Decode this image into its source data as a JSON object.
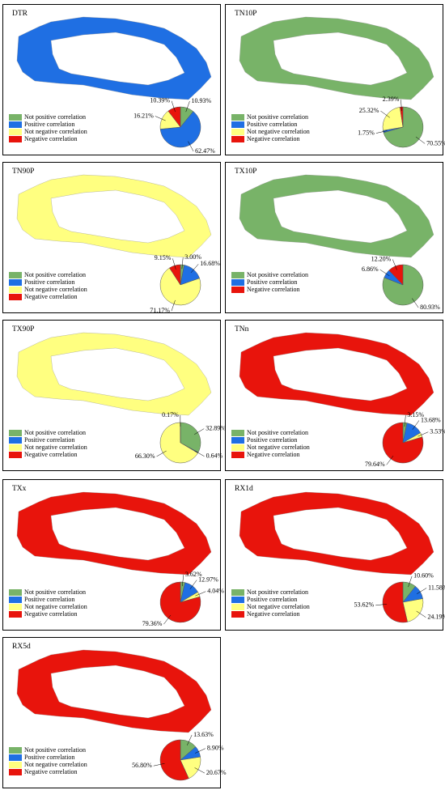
{
  "chart_data": [
    {
      "type": "pie",
      "title": "DTR",
      "categories": [
        "Not positive correlation",
        "Positive correlation",
        "Not negative correlation",
        "Negative correlation"
      ],
      "colors": [
        "#78b368",
        "#1f6fe3",
        "#ffff80",
        "#e8140c"
      ],
      "values": [
        10.93,
        62.47,
        16.21,
        10.39
      ],
      "value_labels": [
        "10.93%",
        "62.47%",
        "16.21%",
        "10.39%"
      ]
    },
    {
      "type": "pie",
      "title": "TN10P",
      "categories": [
        "Not positive correlation",
        "Positive correlation",
        "Not negative correlation",
        "Negative correlation"
      ],
      "colors": [
        "#78b368",
        "#1f6fe3",
        "#ffff80",
        "#e8140c"
      ],
      "values": [
        70.55,
        1.75,
        25.32,
        2.39
      ],
      "value_labels": [
        "70.55%",
        "1.75%",
        "25.32%",
        "2.39%"
      ]
    },
    {
      "type": "pie",
      "title": "TN90P",
      "categories": [
        "Not positive correlation",
        "Positive correlation",
        "Not negative correlation",
        "Negative correlation"
      ],
      "colors": [
        "#78b368",
        "#1f6fe3",
        "#ffff80",
        "#e8140c"
      ],
      "values": [
        3.0,
        16.68,
        71.17,
        9.15
      ],
      "value_labels": [
        "3.00%",
        "16.68%",
        "71.17%",
        "9.15%"
      ]
    },
    {
      "type": "pie",
      "title": "TX10P",
      "categories": [
        "Not positive correlation",
        "Positive correlation",
        "Negative correlation"
      ],
      "colors": [
        "#78b368",
        "#1f6fe3",
        "#e8140c"
      ],
      "values": [
        80.93,
        6.86,
        12.2
      ],
      "value_labels": [
        "80.93%",
        "6.86%",
        "12.20%"
      ]
    },
    {
      "type": "pie",
      "title": "TX90P",
      "categories": [
        "Not positive correlation",
        "Positive correlation",
        "Not negative correlation",
        "Negative correlation"
      ],
      "colors": [
        "#78b368",
        "#1f6fe3",
        "#ffff80",
        "#e8140c"
      ],
      "values": [
        32.89,
        0.64,
        66.3,
        0.17
      ],
      "value_labels": [
        "32.89%",
        "0.64%",
        "66.30%",
        "0.17%"
      ]
    },
    {
      "type": "pie",
      "title": "TNn",
      "categories": [
        "Not positive correlation",
        "Positive correlation",
        "Not negative correlation",
        "Negative correlation"
      ],
      "colors": [
        "#78b368",
        "#1f6fe3",
        "#ffff80",
        "#e8140c"
      ],
      "values": [
        3.15,
        13.68,
        3.53,
        79.64
      ],
      "value_labels": [
        "3.15%",
        "13.68%",
        "3.53%",
        "79.64%"
      ]
    },
    {
      "type": "pie",
      "title": "TXx",
      "categories": [
        "Not positive correlation",
        "Positive correlation",
        "Not negative correlation",
        "Negative correlation"
      ],
      "colors": [
        "#78b368",
        "#1f6fe3",
        "#ffff80",
        "#e8140c"
      ],
      "values": [
        3.62,
        12.97,
        4.04,
        79.36
      ],
      "value_labels": [
        "3.62%",
        "12.97%",
        "4.04%",
        "79.36%"
      ]
    },
    {
      "type": "pie",
      "title": "RX1d",
      "categories": [
        "Not positive correlation",
        "Positive correlation",
        "Not negative correlation",
        "Negative correlation"
      ],
      "colors": [
        "#78b368",
        "#1f6fe3",
        "#ffff80",
        "#e8140c"
      ],
      "values": [
        10.6,
        11.58,
        24.19,
        53.62
      ],
      "value_labels": [
        "10.60%",
        "11.58%",
        "24.19%",
        "53.62%"
      ]
    },
    {
      "type": "pie",
      "title": "RX5d",
      "categories": [
        "Not positive correlation",
        "Positive correlation",
        "Not negative correlation",
        "Negative correlation"
      ],
      "colors": [
        "#78b368",
        "#1f6fe3",
        "#ffff80",
        "#e8140c"
      ],
      "values": [
        13.63,
        8.9,
        20.67,
        56.8
      ],
      "value_labels": [
        "13.63%",
        "8.90%",
        "20.67%",
        "56.80%"
      ]
    }
  ]
}
